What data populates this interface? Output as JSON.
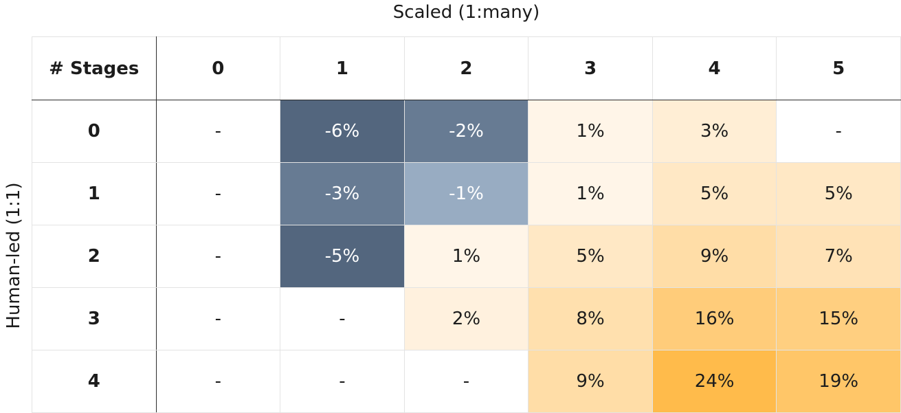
{
  "chart_data": {
    "type": "heatmap",
    "title": "",
    "xlabel": "Scaled (1:many)",
    "ylabel": "Human-led (1:1)",
    "corner_label": "# Stages",
    "x_categories": [
      "0",
      "1",
      "2",
      "3",
      "4",
      "5"
    ],
    "y_categories": [
      "0",
      "1",
      "2",
      "3",
      "4"
    ],
    "cells": [
      [
        "-",
        "-6%",
        "-2%",
        "1%",
        "3%",
        "-"
      ],
      [
        "-",
        "-3%",
        "-1%",
        "1%",
        "5%",
        "5%"
      ],
      [
        "-",
        "-5%",
        "1%",
        "5%",
        "9%",
        "7%"
      ],
      [
        "-",
        "-",
        "2%",
        "8%",
        "16%",
        "15%"
      ],
      [
        "-",
        "-",
        "-",
        "9%",
        "24%",
        "19%"
      ]
    ],
    "values": [
      [
        null,
        -6,
        -2,
        1,
        3,
        null
      ],
      [
        null,
        -3,
        -1,
        1,
        5,
        5
      ],
      [
        null,
        -5,
        1,
        5,
        9,
        7
      ],
      [
        null,
        null,
        2,
        8,
        16,
        15
      ],
      [
        null,
        null,
        null,
        9,
        24,
        19
      ]
    ],
    "colors": {
      "negative_strong": "#53667e",
      "negative_mid": "#677b93",
      "negative_light": "#98acc2",
      "positive_max": "#ffbb4b",
      "positive_min": "#fffaf5",
      "empty": "#ffffff",
      "text_on_dark": "#ffffff",
      "text_on_light": "#1c1c1c"
    }
  }
}
